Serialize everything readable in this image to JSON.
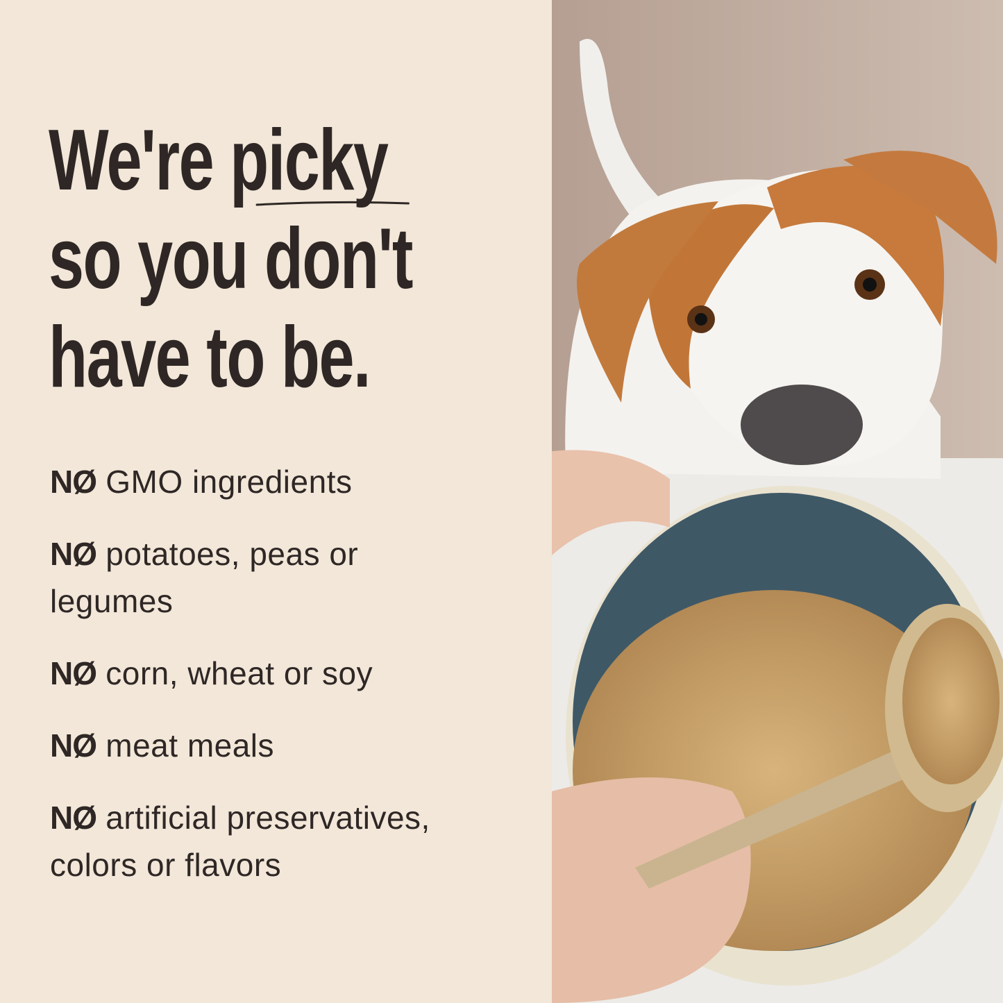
{
  "headline": {
    "line1_prefix": "We're ",
    "line1_emphasis": "picky",
    "line2": "so you don't",
    "line3": "have to be."
  },
  "list": {
    "prefix": "NØ",
    "items": [
      "GMO ingredients",
      "potatoes, peas or legumes",
      "corn, wheat or soy",
      "meat meals",
      "artificial preservatives, colors or flavors"
    ]
  },
  "colors": {
    "background": "#f2e7d8",
    "text": "#2e2725"
  },
  "photo": {
    "subject": "dog-looking-at-kibble-bowl-photo"
  }
}
